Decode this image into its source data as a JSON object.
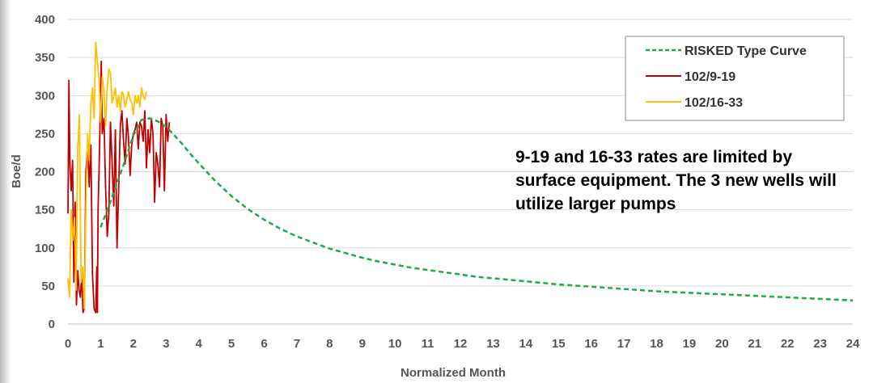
{
  "chart_data": {
    "type": "line",
    "title": "",
    "xlabel": "Normalized Month",
    "ylabel": "Boe/d",
    "xlim": [
      0,
      24
    ],
    "ylim": [
      0,
      400
    ],
    "xticks": [
      0,
      1,
      2,
      3,
      4,
      5,
      6,
      7,
      8,
      9,
      10,
      11,
      12,
      13,
      14,
      15,
      16,
      17,
      18,
      19,
      20,
      21,
      22,
      23,
      24
    ],
    "yticks": [
      0,
      50,
      100,
      150,
      200,
      250,
      300,
      350,
      400
    ],
    "grid": "horizontal",
    "legend_position": "top-right",
    "annotation": "9-19 and 16-33 rates are limited by surface equipment. The 3 new wells will utilize larger pumps",
    "series": [
      {
        "name": "RISKED Type Curve",
        "color": "#1aab4a",
        "style": "dashed",
        "x": [
          1.0,
          1.25,
          1.5,
          1.75,
          2.0,
          2.25,
          2.5,
          2.75,
          3.0,
          3.25,
          3.5,
          3.75,
          4.0,
          4.5,
          5.0,
          5.5,
          6.0,
          6.5,
          7.0,
          7.5,
          8.0,
          8.5,
          9.0,
          9.5,
          10.0,
          10.5,
          11.0,
          11.5,
          12.0,
          12.5,
          13.0,
          13.5,
          14.0,
          15.0,
          16.0,
          17.0,
          18.0,
          19.0,
          20.0,
          21.0,
          22.0,
          23.0,
          24.0
        ],
        "y": [
          127,
          155,
          185,
          215,
          248,
          268,
          270,
          266,
          259,
          248,
          236,
          223,
          211,
          188,
          168,
          151,
          137,
          125,
          115,
          107,
          99,
          93,
          87,
          82,
          78,
          74,
          71,
          68,
          65,
          62,
          60,
          58,
          56,
          52,
          49,
          46,
          43,
          41,
          39,
          37,
          35,
          33,
          31
        ]
      },
      {
        "name": "102/9-19",
        "color": "#c00000",
        "style": "solid",
        "x": [
          0.0,
          0.03,
          0.06,
          0.1,
          0.14,
          0.18,
          0.22,
          0.26,
          0.3,
          0.34,
          0.38,
          0.42,
          0.46,
          0.5,
          0.55,
          0.6,
          0.65,
          0.7,
          0.75,
          0.8,
          0.85,
          0.88,
          0.9,
          0.92,
          0.95,
          1.0,
          1.02,
          1.05,
          1.1,
          1.15,
          1.2,
          1.25,
          1.3,
          1.35,
          1.4,
          1.45,
          1.5,
          1.55,
          1.6,
          1.65,
          1.7,
          1.75,
          1.8,
          1.85,
          1.9,
          1.95,
          2.0,
          2.05,
          2.1,
          2.15,
          2.2,
          2.25,
          2.3,
          2.35,
          2.4,
          2.45,
          2.5,
          2.55,
          2.6,
          2.65,
          2.7,
          2.75,
          2.8,
          2.85,
          2.9,
          2.95,
          3.0,
          3.05,
          3.1
        ],
        "y": [
          145,
          320,
          210,
          175,
          215,
          55,
          160,
          25,
          70,
          45,
          35,
          65,
          15,
          20,
          200,
          235,
          180,
          235,
          65,
          20,
          15,
          75,
          15,
          150,
          200,
          305,
          345,
          250,
          270,
          180,
          115,
          145,
          265,
          210,
          155,
          255,
          100,
          175,
          260,
          280,
          240,
          210,
          270,
          245,
          195,
          235,
          250,
          255,
          265,
          230,
          265,
          260,
          240,
          280,
          205,
          255,
          225,
          270,
          250,
          160,
          225,
          210,
          180,
          270,
          260,
          175,
          275,
          240,
          265
        ]
      },
      {
        "name": "102/16-33",
        "color": "#ffc000",
        "style": "solid",
        "x": [
          0.0,
          0.05,
          0.1,
          0.15,
          0.2,
          0.25,
          0.3,
          0.35,
          0.4,
          0.45,
          0.5,
          0.55,
          0.6,
          0.65,
          0.7,
          0.75,
          0.8,
          0.85,
          0.9,
          0.95,
          1.0,
          1.05,
          1.1,
          1.15,
          1.2,
          1.25,
          1.3,
          1.35,
          1.4,
          1.45,
          1.5,
          1.55,
          1.6,
          1.65,
          1.7,
          1.75,
          1.8,
          1.85,
          1.9,
          1.95,
          2.0,
          2.05,
          2.1,
          2.15,
          2.2,
          2.25,
          2.3,
          2.35,
          2.4
        ],
        "y": [
          60,
          35,
          150,
          110,
          140,
          45,
          230,
          275,
          55,
          75,
          20,
          155,
          250,
          215,
          290,
          310,
          270,
          370,
          345,
          320,
          265,
          325,
          305,
          260,
          310,
          335,
          330,
          290,
          300,
          310,
          285,
          300,
          280,
          305,
          300,
          285,
          295,
          305,
          295,
          290,
          275,
          300,
          290,
          300,
          285,
          310,
          300,
          295,
          305
        ]
      }
    ]
  }
}
